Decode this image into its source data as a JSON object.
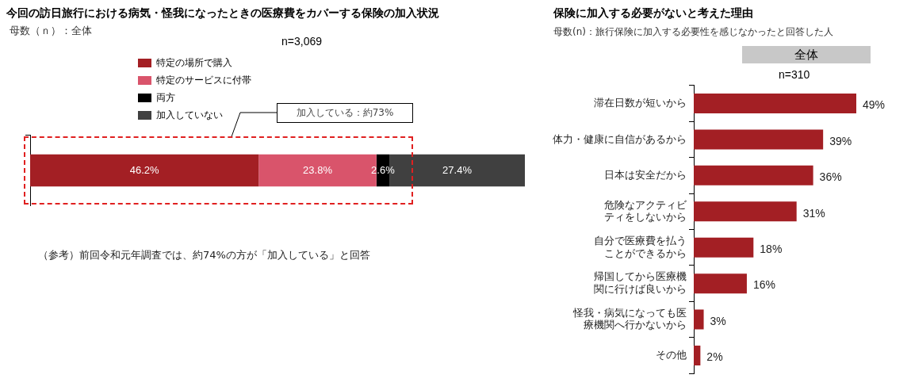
{
  "chart_data": [
    {
      "type": "bar",
      "orientation": "horizontal",
      "stacked": true,
      "title": "今回の訪日旅行における病気・怪我になったときの医療費をカバーする保険の加入状況",
      "subtitle": "母数（ｎ）：全体",
      "categories": [
        null
      ],
      "legend": "top",
      "series": [
        {
          "name": "特定の場所で購入",
          "color": "#a31f24",
          "values": [
            46.2
          ],
          "value_labels": [
            "46.2%"
          ]
        },
        {
          "name": "特定のサービスに付帯",
          "color": "#d9546b",
          "values": [
            23.8
          ],
          "value_labels": [
            "23.8%"
          ]
        },
        {
          "name": "両方",
          "color": "#000000",
          "values": [
            2.6
          ],
          "value_labels": [
            "2.6%"
          ]
        },
        {
          "name": "加入していない",
          "color": "#404040",
          "values": [
            27.4
          ],
          "value_labels": [
            "27.4%"
          ]
        }
      ],
      "annotations": [
        "n=3,069",
        "加入している：約73%",
        "（参考）前回令和元年調査では、約74%の方が「加入している」と回答"
      ]
    },
    {
      "type": "bar",
      "orientation": "horizontal",
      "title": "保険に加入する必要がないと考えた理由",
      "subtitle": "母数(n)：旅行保険に加入する必要性を感じなかったと回答した人",
      "categories": [
        "滞在日数が短いから",
        "体力・健康に自信があるから",
        "日本は安全だから",
        "危険なアクティビティをしないから",
        "自分で医療費を払うことができるから",
        "帰国してから医療機関に行けば良いから",
        "怪我・病気になっても医療機関へ行かないから",
        "その他"
      ],
      "values": [
        49,
        39,
        36,
        31,
        18,
        16,
        3,
        2
      ],
      "color": "#a31f24",
      "value_labels": [
        "49%",
        "39%",
        "36%",
        "31%",
        "18%",
        "16%",
        "3%",
        "2%"
      ],
      "annotations": [
        "全体",
        "n=310"
      ]
    }
  ]
}
